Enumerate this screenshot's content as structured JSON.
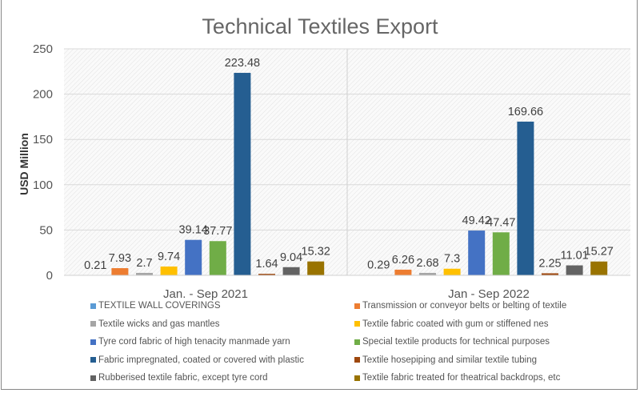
{
  "chart_data": {
    "type": "bar",
    "title": "Technical Textiles Export",
    "xlabel": "",
    "ylabel": "USD Million",
    "ylim": [
      0,
      250
    ],
    "yticks": [
      0,
      50,
      100,
      150,
      200,
      250
    ],
    "grid": true,
    "legend_position": "bottom",
    "categories": [
      "Jan. - Sep 2021",
      "Jan - Sep 2022"
    ],
    "series": [
      {
        "name": "TEXTILE WALL COVERINGS",
        "color": "#5B9BD5",
        "values": [
          0.21,
          0.29
        ]
      },
      {
        "name": "Transmission or conveyor belts or belting of textile",
        "color": "#ED7D31",
        "values": [
          7.93,
          6.26
        ]
      },
      {
        "name": "Textile wicks and gas mantles",
        "color": "#A5A5A5",
        "values": [
          2.7,
          2.68
        ]
      },
      {
        "name": "Textile fabric coated with gum or stiffened nes",
        "color": "#FFC000",
        "values": [
          9.74,
          7.3
        ]
      },
      {
        "name": "Tyre cord fabric of high tenacity manmade yarn",
        "color": "#4472C4",
        "values": [
          39.14,
          49.42
        ]
      },
      {
        "name": "Special textile products for technical purposes",
        "color": "#70AD47",
        "values": [
          37.77,
          47.47
        ]
      },
      {
        "name": "Fabric impregnated, coated or covered with plastic",
        "color": "#255E91",
        "values": [
          223.48,
          169.66
        ]
      },
      {
        "name": "Textile hosepiping and similar textile tubing",
        "color": "#9E480E",
        "values": [
          1.64,
          2.25
        ]
      },
      {
        "name": "Rubberised textile fabric, except tyre cord",
        "color": "#636363",
        "values": [
          9.04,
          11.01
        ]
      },
      {
        "name": "Textile fabric treated for theatrical backdrops, etc",
        "color": "#997300",
        "values": [
          15.32,
          15.27
        ]
      }
    ]
  }
}
